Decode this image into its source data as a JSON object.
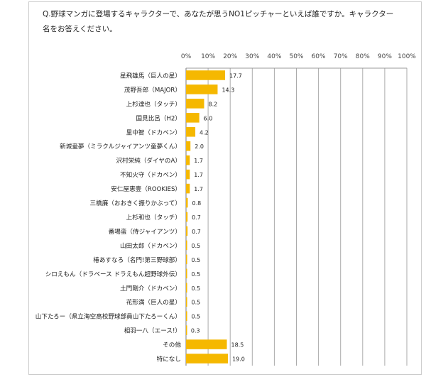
{
  "chart_data": {
    "type": "bar",
    "orientation": "horizontal",
    "title_lines": [
      "Q.野球マンガに登場するキャラクターで、あなたが思うNO1ピッチャーといえば誰ですか。キャラクター",
      "名をお答えください。"
    ],
    "categories": [
      "星飛雄馬（巨人の星）",
      "茂野吾郎（MAJOR）",
      "上杉達也（タッチ）",
      "国見比呂（H2）",
      "里中智（ドカベン）",
      "新城童夢（ミラクルジャイアンツ童夢くん）",
      "沢村栄純（ダイヤのA）",
      "不知火守（ドカベン）",
      "安仁屋恵壹（ROOKIES）",
      "三橋廉（おおきく振りかぶって）",
      "上杉和也（タッチ）",
      "番場蛮（侍ジャイアンツ）",
      "山田太郎（ドカベン）",
      "椿あすなろ（名門!第三野球部）",
      "シロえもん（ドラベース ドラえもん超野球外伝）",
      "土門剛介（ドカベン）",
      "花形満（巨人の星）",
      "山下たろー（県立海空高校野球部員山下たろーくん）",
      "相羽一八（エース!）",
      "その他",
      "特になし"
    ],
    "values": [
      17.7,
      14.3,
      8.2,
      6.0,
      4.2,
      2.0,
      1.7,
      1.7,
      1.7,
      0.8,
      0.7,
      0.7,
      0.5,
      0.5,
      0.5,
      0.5,
      0.5,
      0.5,
      0.3,
      18.5,
      19.0
    ],
    "value_labels": [
      "17.7",
      "14.3",
      "8.2",
      "6.0",
      "4.2",
      "2.0",
      "1.7",
      "1.7",
      "1.7",
      "0.8",
      "0.7",
      "0.7",
      "0.5",
      "0.5",
      "0.5",
      "0.5",
      "0.5",
      "0.5",
      "0.3",
      "18.5",
      "19.0"
    ],
    "xlim": [
      0,
      100
    ],
    "xticks": [
      "0%",
      "10%",
      "20%",
      "30%",
      "40%",
      "50%",
      "60%",
      "70%",
      "80%",
      "90%",
      "100%"
    ],
    "xaxis_position": "top",
    "grid": true,
    "bar_color": "#F5B800",
    "grid_color": "#999999"
  }
}
